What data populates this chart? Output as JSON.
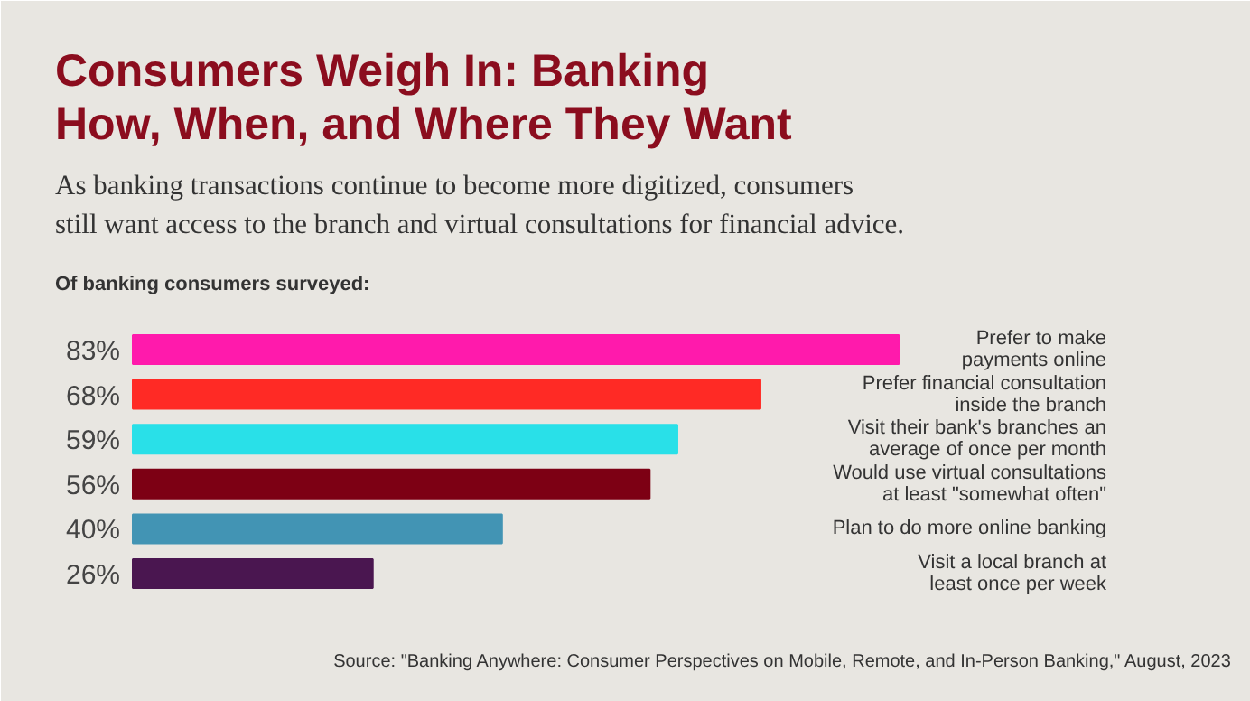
{
  "chart_data": {
    "type": "bar",
    "orientation": "horizontal",
    "title": "Consumers Weigh In: Banking\nHow, When, and Where They Want",
    "subtitle": "As banking transactions continue to become more digitized, consumers\nstill want access to the branch and virtual consultations for financial advice.",
    "categories": [
      "Prefer to make\npayments online",
      "Prefer financial consultation\ninside the branch",
      "Visit their bank's branches an\naverage of once per month",
      "Would use virtual consultations\nat least \"somewhat often\"",
      "Plan to do more online banking",
      "Visit a local branch at\nleast once per week"
    ],
    "values": [
      83,
      68,
      59,
      56,
      40,
      26
    ],
    "colors": [
      "#ff1aac",
      "#ff2a25",
      "#29e0e8",
      "#7d0014",
      "#4294b4",
      "#4a1650"
    ],
    "value_labels": [
      "83%",
      "68%",
      "59%",
      "56%",
      "40%",
      "26%"
    ],
    "annotations": [
      "Of banking consumers surveyed:",
      "Source: \"Banking Anywhere: Consumer Perspectives on Mobile, Remote, and In-Person Banking,\" August, 2023"
    ]
  }
}
